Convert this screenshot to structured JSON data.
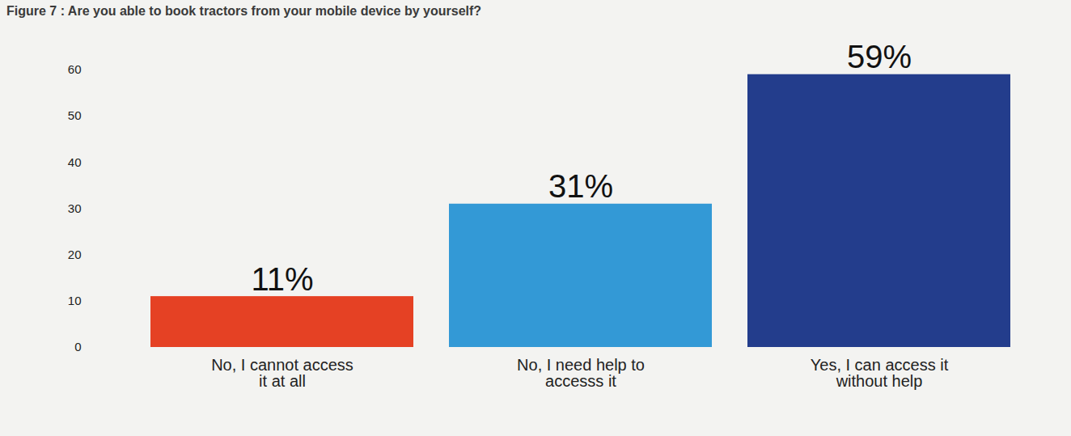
{
  "chart_data": {
    "type": "bar",
    "title": "Figure 7 : Are you able to book tractors from your mobile device by yourself?",
    "categories": [
      "No, I cannot access it at all",
      "No, I need help to accesss it",
      "Yes, I can access it without help"
    ],
    "values": [
      11,
      31,
      59
    ],
    "value_labels": [
      "11%",
      "31%",
      "59%"
    ],
    "colors": [
      "#e54124",
      "#3399d6",
      "#233d8c"
    ],
    "ylim": [
      0,
      60
    ],
    "yticks": [
      0,
      10,
      20,
      30,
      40,
      50,
      60
    ],
    "grid": false,
    "data_labels": true
  }
}
